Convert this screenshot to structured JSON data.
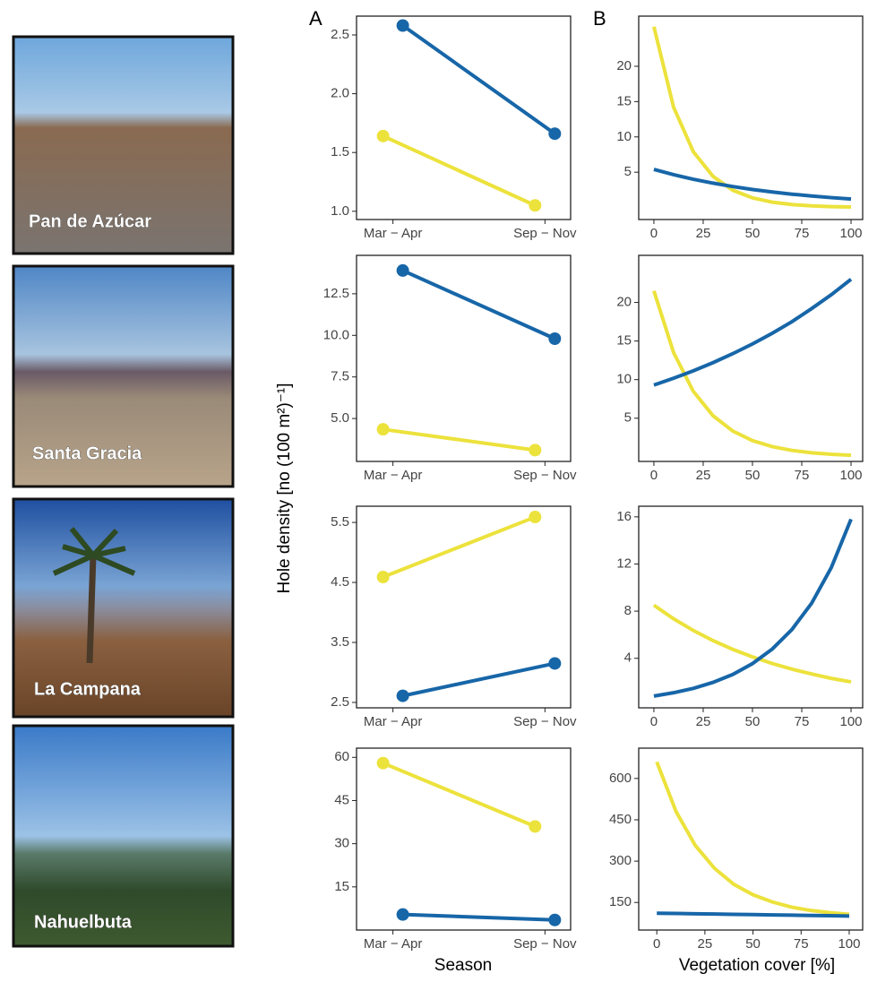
{
  "figure": {
    "panel_labels": [
      "A",
      "B"
    ],
    "ylabel": "Hole density [no (100 m²)⁻¹]",
    "xlabels": [
      "Season",
      "Vegetation cover [%]"
    ]
  },
  "photos": [
    {
      "label": "Pan de Azúcar"
    },
    {
      "label": "Santa Gracia"
    },
    {
      "label": "La Campana"
    },
    {
      "label": "Nahuelbuta"
    }
  ],
  "chart_data": [
    {
      "type": "line",
      "markers": true,
      "categories": [
        "Mar − Apr",
        "Sep − Nov"
      ],
      "series": [
        {
          "color": "#ece23c",
          "values": [
            1.64,
            1.05
          ]
        },
        {
          "color": "#1766a8",
          "values": [
            2.58,
            1.66
          ]
        }
      ],
      "ylim": [
        0.93,
        2.66
      ],
      "yticks": [
        {
          "value": 1,
          "label": "1.0"
        },
        1.5,
        {
          "value": 2,
          "label": "2.0"
        },
        2.5
      ]
    },
    {
      "type": "line",
      "x": [
        0,
        10,
        20,
        30,
        40,
        50,
        60,
        70,
        80,
        90,
        100
      ],
      "xlim": [
        -7.7,
        105.9
      ],
      "xticks": [
        0,
        25,
        50,
        75,
        100
      ],
      "series": [
        {
          "color": "#ece23c",
          "values": [
            25.6,
            14.2,
            7.9,
            4.4,
            2.45,
            1.36,
            0.76,
            0.42,
            0.23,
            0.13,
            0.07
          ]
        },
        {
          "color": "#1766a8",
          "values": [
            5.4,
            4.65,
            4.0,
            3.45,
            2.97,
            2.55,
            2.2,
            1.89,
            1.63,
            1.4,
            1.2
          ]
        }
      ],
      "ylim": [
        -1.7,
        27.1
      ],
      "yticks": [
        5,
        10,
        15,
        20
      ]
    },
    {
      "type": "line",
      "markers": true,
      "categories": [
        "Mar − Apr",
        "Sep − Nov"
      ],
      "series": [
        {
          "color": "#ece23c",
          "values": [
            4.35,
            3.1
          ]
        },
        {
          "color": "#1766a8",
          "values": [
            13.9,
            9.8
          ]
        }
      ],
      "ylim": [
        2.42,
        14.81
      ],
      "yticks": [
        {
          "value": 5,
          "label": "5.0"
        },
        7.5,
        {
          "value": 10,
          "label": "10.0"
        },
        12.5
      ]
    },
    {
      "type": "line",
      "x": [
        0,
        10,
        20,
        30,
        40,
        50,
        60,
        70,
        80,
        90,
        100
      ],
      "xlim": [
        -7.7,
        105.9
      ],
      "xticks": [
        0,
        25,
        50,
        75,
        100
      ],
      "series": [
        {
          "color": "#ece23c",
          "values": [
            21.5,
            13.5,
            8.48,
            5.32,
            3.34,
            2.1,
            1.32,
            0.83,
            0.52,
            0.33,
            0.2
          ]
        },
        {
          "color": "#1766a8",
          "values": [
            9.3,
            10.18,
            11.14,
            12.2,
            13.36,
            14.62,
            16.0,
            17.5,
            19.2,
            21.0,
            23.0
          ]
        }
      ],
      "ylim": [
        -0.6,
        26.1
      ],
      "yticks": [
        5,
        10,
        15,
        20
      ]
    },
    {
      "type": "line",
      "markers": true,
      "categories": [
        "Mar − Apr",
        "Sep − Nov"
      ],
      "series": [
        {
          "color": "#ece23c",
          "values": [
            4.59,
            5.59
          ]
        },
        {
          "color": "#1766a8",
          "values": [
            2.61,
            3.15
          ]
        }
      ],
      "ylim": [
        2.41,
        5.77
      ],
      "yticks": [
        2.5,
        3.5,
        4.5,
        5.5
      ]
    },
    {
      "type": "line",
      "x": [
        0,
        10,
        20,
        30,
        40,
        50,
        60,
        70,
        80,
        90,
        100
      ],
      "xlim": [
        -7.7,
        105.9
      ],
      "xticks": [
        0,
        25,
        50,
        75,
        100
      ],
      "series": [
        {
          "color": "#ece23c",
          "values": [
            8.5,
            7.35,
            6.36,
            5.5,
            4.76,
            4.12,
            3.56,
            3.08,
            2.67,
            2.3,
            2.0
          ]
        },
        {
          "color": "#1766a8",
          "values": [
            0.8,
            1.08,
            1.45,
            1.96,
            2.63,
            3.55,
            4.78,
            6.44,
            8.67,
            11.7,
            15.8
          ]
        }
      ],
      "ylim": [
        -0.2,
        16.9
      ],
      "yticks": [
        4,
        8,
        12,
        16
      ]
    },
    {
      "type": "line",
      "markers": true,
      "categories": [
        "Mar − Apr",
        "Sep − Nov"
      ],
      "series": [
        {
          "color": "#ece23c",
          "values": [
            58,
            36
          ]
        },
        {
          "color": "#1766a8",
          "values": [
            5.4,
            3.5
          ]
        }
      ],
      "ylim": [
        0,
        63.2
      ],
      "yticks": [
        15,
        30,
        45,
        60
      ]
    },
    {
      "type": "line",
      "x": [
        0,
        10,
        20,
        30,
        40,
        50,
        60,
        70,
        80,
        90,
        100
      ],
      "xlim": [
        -9.4,
        107
      ],
      "xticks": [
        0,
        25,
        50,
        75,
        100
      ],
      "series": [
        {
          "color": "#ece23c",
          "values": [
            660,
            480,
            357,
            274,
            216,
            178,
            152,
            133,
            121,
            113,
            107
          ]
        },
        {
          "color": "#1766a8",
          "values": [
            111,
            110,
            109,
            108,
            107,
            106,
            105,
            104,
            103,
            102,
            101
          ]
        }
      ],
      "ylim": [
        50,
        710
      ],
      "yticks": [
        150,
        300,
        450,
        600
      ]
    }
  ]
}
